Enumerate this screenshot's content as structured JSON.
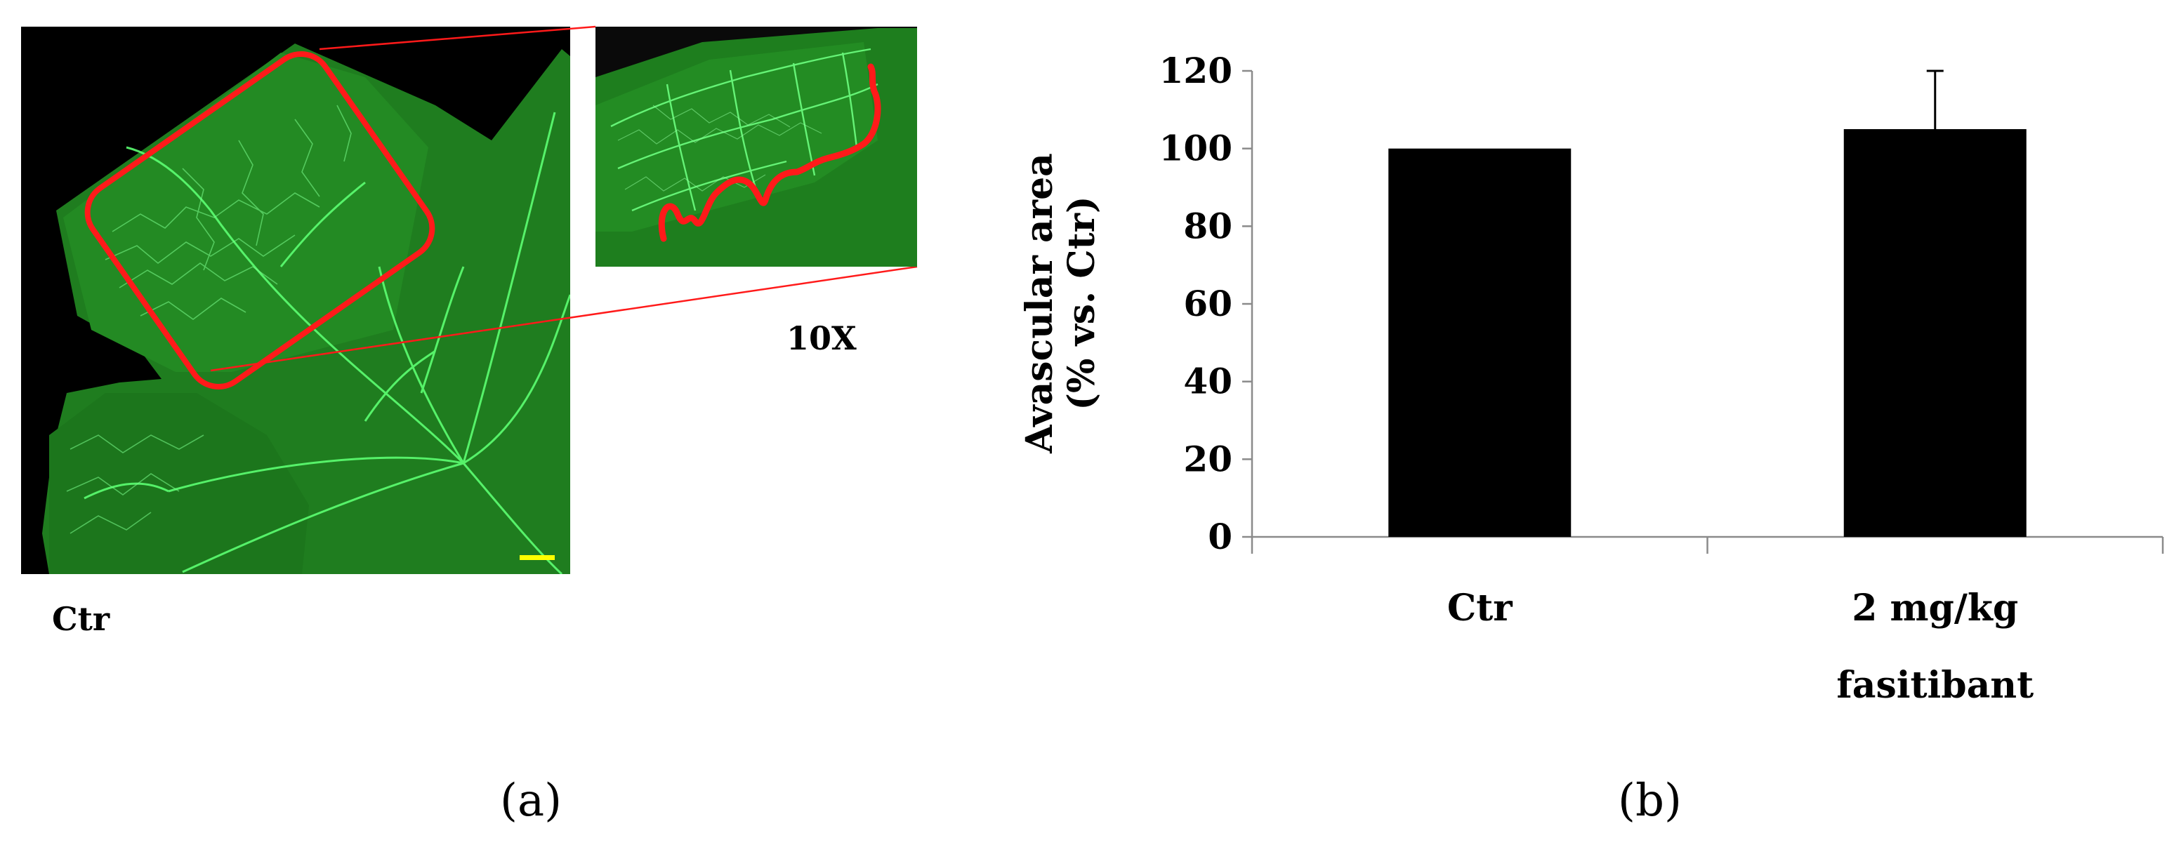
{
  "panel_a": {
    "condition_label": "Ctr",
    "zoom_label": "10X",
    "panel_letter": "(a)",
    "colors": {
      "tissue": "#1e8a1e",
      "tissue_bright": "#2fbf3a",
      "vessel": "#5cff72",
      "background": "#000000",
      "outline": "#ff1a1a",
      "scale_bar": "#ffff00"
    },
    "icons": [
      "retina-flatmount-image",
      "retina-zoom-inset-image",
      "scale-bar-icon"
    ]
  },
  "panel_b": {
    "panel_letter": "(b)",
    "chart_data": {
      "type": "bar",
      "title": "",
      "ylabel_line1": "Avascular area",
      "ylabel_line2": "(% vs. Ctr)",
      "xlabel": "",
      "categories": [
        "Ctr",
        "2 mg/kg fasitibant"
      ],
      "category_lines": [
        [
          "Ctr"
        ],
        [
          "2 mg/kg",
          "fasitibant"
        ]
      ],
      "values": [
        100,
        105
      ],
      "error_upper": [
        0,
        15
      ],
      "ylim": [
        0,
        120
      ],
      "yticks": [
        0,
        20,
        40,
        60,
        80,
        100,
        120
      ],
      "grid": false,
      "bar_color": "#000000"
    }
  }
}
